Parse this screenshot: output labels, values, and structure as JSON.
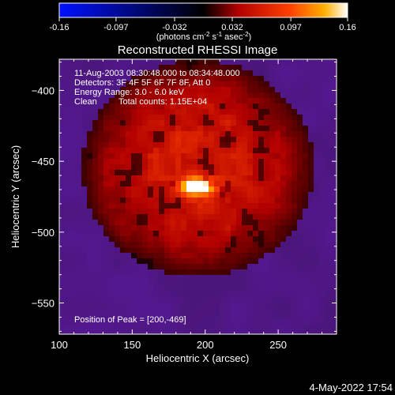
{
  "chart_data": {
    "type": "heatmap",
    "title": "Reconstructed RHESSI Image",
    "xlabel": "Heliocentric X (arcsec)",
    "ylabel": "Heliocentric Y (arcsec)",
    "xlim": [
      100,
      290
    ],
    "ylim": [
      -572,
      -378
    ],
    "x_ticks": [
      100,
      150,
      200,
      250
    ],
    "y_ticks": [
      -400,
      -450,
      -500,
      -550
    ],
    "colorbar": {
      "range": [
        -0.16,
        0.16
      ],
      "ticks": [
        "-0.16",
        "-0.097",
        "-0.032",
        "0.032",
        "0.097",
        "0.16"
      ],
      "unit_label_parts": [
        "(photons cm",
        "-2",
        " s",
        "-1",
        " asec",
        "-2",
        ")"
      ],
      "colors": [
        "#0000ff",
        "#000000",
        "#c00000",
        "#ffa000",
        "#ffffff"
      ]
    },
    "annotations": [
      "11-Aug-2003 08:30:48.000 to 08:34:48.000",
      "Detectors: 3F 4F 5F 6F 7F 8F, Att 0",
      "Energy Range: 3.0 - 6.0 keV",
      "Clean",
      "Total counts: 1.15E+04"
    ],
    "peak_label": "Position of Peak = [200,-469]",
    "peak_position": [
      200,
      -469
    ],
    "peak_value": 0.16,
    "footer_date": "4-May-2022 17:54"
  }
}
